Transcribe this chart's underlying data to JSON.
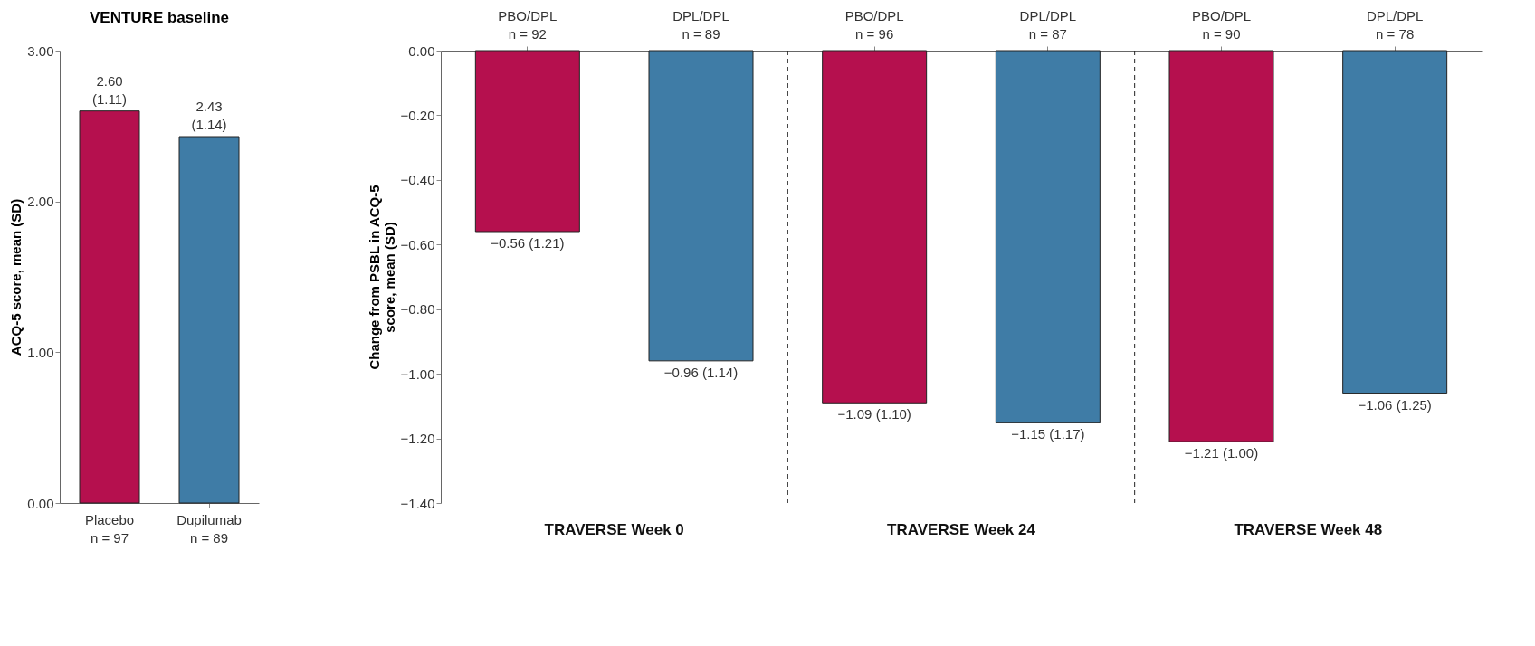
{
  "chart_data": [
    {
      "type": "bar",
      "title": "VENTURE baseline",
      "ylabel": "ACQ-5 score, mean (SD)",
      "categories": [
        "Placebo\nn = 97",
        "Dupilumab\nn = 89"
      ],
      "values": [
        2.6,
        2.43
      ],
      "colors": [
        "#b5104e",
        "#3f7ca6"
      ],
      "value_labels": [
        "2.60\n(1.11)",
        "2.43\n(1.14)"
      ],
      "ylim": [
        0,
        3
      ],
      "yticks": [
        {
          "value": 0,
          "label": "0.00"
        },
        {
          "value": 1,
          "label": "1.00"
        },
        {
          "value": 2,
          "label": "2.00"
        },
        {
          "value": 3,
          "label": "3.00"
        }
      ],
      "grid": false
    },
    {
      "type": "bar",
      "ylabel": "Change from PSBL in ACQ-5\nscore, mean (SD)",
      "categories": [
        "PBO/DPL\nn = 92",
        "DPL/DPL\nn = 89",
        "PBO/DPL\nn = 96",
        "DPL/DPL\nn = 87",
        "PBO/DPL\nn = 90",
        "DPL/DPL\nn = 78"
      ],
      "values": [
        -0.56,
        -0.96,
        -1.09,
        -1.15,
        -1.21,
        -1.06
      ],
      "colors": [
        "#b5104e",
        "#3f7ca6",
        "#b5104e",
        "#3f7ca6",
        "#b5104e",
        "#3f7ca6"
      ],
      "value_labels": [
        "−0.56 (1.21)",
        "−0.96 (1.14)",
        "−1.09 (1.10)",
        "−1.15 (1.17)",
        "−1.21 (1.00)",
        "−1.06 (1.25)"
      ],
      "annotations": [
        "TRAVERSE Week 0",
        "TRAVERSE Week 24",
        "TRAVERSE Week 48"
      ],
      "ylim": [
        -1.4,
        0
      ],
      "yticks": [
        {
          "value": 0,
          "label": "0.00"
        },
        {
          "value": -0.2,
          "label": "−0.20"
        },
        {
          "value": -0.4,
          "label": "−0.40"
        },
        {
          "value": -0.6,
          "label": "−0.60"
        },
        {
          "value": -0.8,
          "label": "−0.80"
        },
        {
          "value": -1.0,
          "label": "−1.00"
        },
        {
          "value": -1.2,
          "label": "−1.20"
        },
        {
          "value": -1.4,
          "label": "−1.40"
        }
      ],
      "grid": false
    }
  ]
}
